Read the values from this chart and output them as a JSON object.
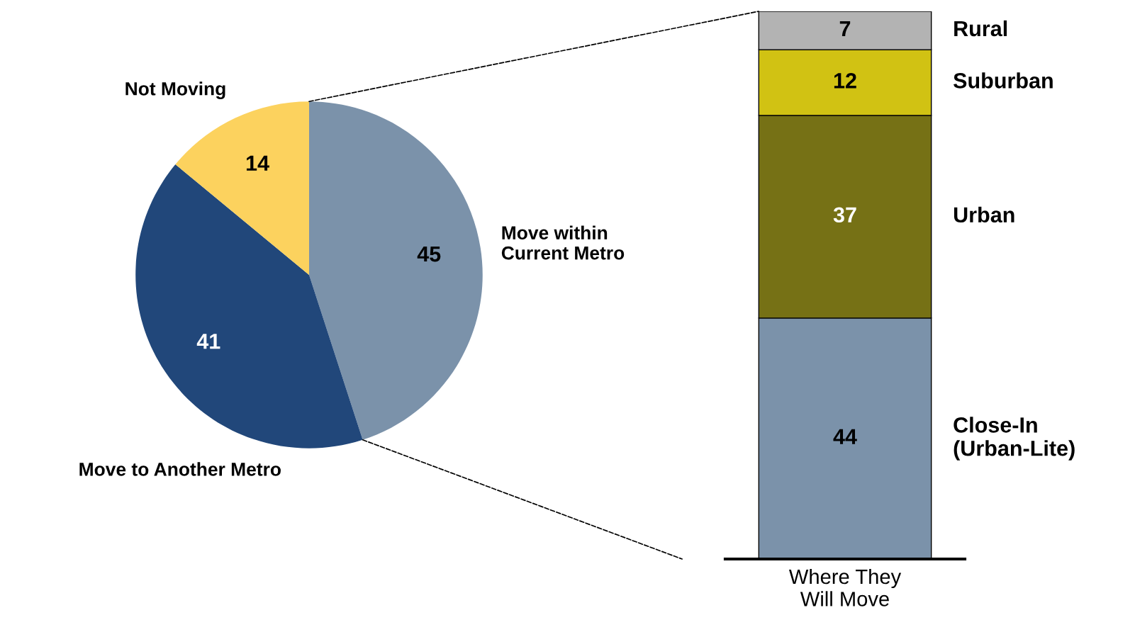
{
  "chart_data": [
    {
      "type": "pie",
      "categories": [
        "Move within\nCurrent Metro",
        "Move to Another Metro",
        "Not Moving"
      ],
      "values": [
        45,
        41,
        14
      ],
      "colors": [
        "#7b92aa",
        "#21477a",
        "#fcd25e"
      ],
      "data_labels": true
    },
    {
      "type": "bar",
      "stacked": true,
      "categories": [
        null
      ],
      "xlabel": "Where They\nWill Move",
      "data_labels": true,
      "series": [
        {
          "name": "Close-In\n(Urban-Lite)",
          "color": "#7b92aa",
          "values": [
            44
          ]
        },
        {
          "name": "Urban",
          "color": "#767115",
          "values": [
            37
          ]
        },
        {
          "name": "Suburban",
          "color": "#d1c213",
          "values": [
            12
          ]
        },
        {
          "name": "Rural",
          "color": "#b3b3b3",
          "values": [
            7
          ]
        }
      ]
    }
  ]
}
